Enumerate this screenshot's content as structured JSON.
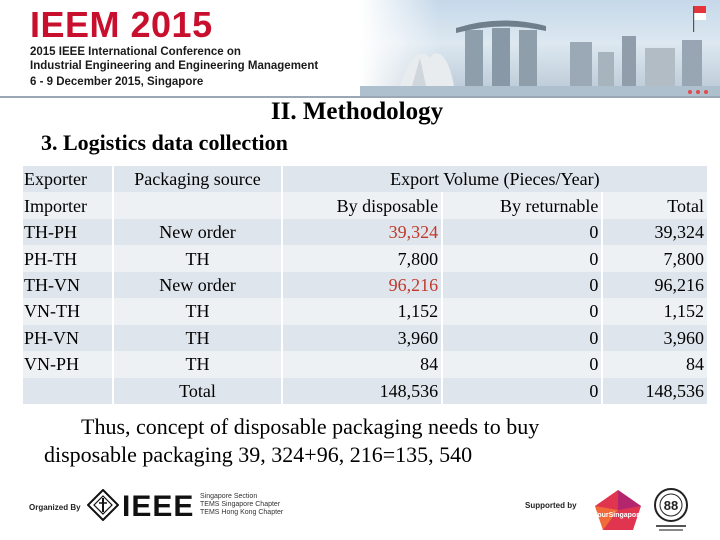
{
  "banner": {
    "title": "IEEM 2015",
    "subtitle_line1": "2015 IEEE International Conference on",
    "subtitle_line2": "Industrial Engineering and Engineering Management",
    "subtitle_line3": "6 - 9 December 2015, Singapore"
  },
  "section_title": "II. Methodology",
  "sub_title": "3. Logistics data collection",
  "table": {
    "header1": {
      "exporter": "Exporter",
      "packaging_source": "Packaging  source",
      "export_volume": "Export Volume (Pieces/Year)"
    },
    "header2": {
      "importer": "Importer",
      "by_disposable": "By disposable",
      "by_returnable": "By returnable",
      "total": "Total"
    },
    "rows": [
      {
        "route": "TH-PH",
        "source": "New order",
        "disposable": "39,324",
        "returnable": "0",
        "total": "39,324"
      },
      {
        "route": "PH-TH",
        "source": "TH",
        "disposable": "7,800",
        "returnable": "0",
        "total": "7,800"
      },
      {
        "route": "TH-VN",
        "source": "New order",
        "disposable": "96,216",
        "returnable": "0",
        "total": "96,216"
      },
      {
        "route": "VN-TH",
        "source": "TH",
        "disposable": "1,152",
        "returnable": "0",
        "total": "1,152"
      },
      {
        "route": "PH-VN",
        "source": "TH",
        "disposable": "3,960",
        "returnable": "0",
        "total": "3,960"
      },
      {
        "route": "VN-PH",
        "source": "TH",
        "disposable": "84",
        "returnable": "0",
        "total": "84"
      }
    ],
    "total_row": {
      "label": "Total",
      "disposable": "148,536",
      "returnable": "0",
      "total": "148,536"
    },
    "highlight_color": "#c0392b"
  },
  "conclusion": {
    "line1": "Thus, concept of disposable packaging needs to buy",
    "line2": "disposable packaging 39, 324+96, 216=135, 540"
  },
  "footer": {
    "organized_by": "Organized By",
    "ieee": "IEEE",
    "chapter_line1": "Singapore Section",
    "chapter_line2": "TEMS Singapore Chapter",
    "chapter_line3": "TEMS Hong Kong Chapter",
    "supported_by": "Supported by",
    "sponsor_logo": "YourSingapore",
    "sponsor_seal": "88"
  },
  "colors": {
    "title_red": "#c8102e",
    "table_row_a": "#dfe5ec",
    "table_row_b": "#edf1f4"
  },
  "icons": {
    "ieee_logo": "ieee-diamond-icon",
    "tourism_logo": "your-singapore-logo-icon",
    "seal": "circular-seal-icon"
  }
}
